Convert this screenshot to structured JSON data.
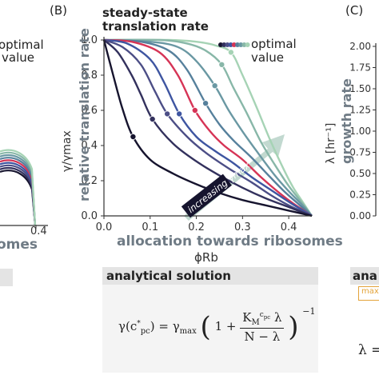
{
  "panel_labels": {
    "b": "(B)",
    "c": "(C)"
  },
  "left_panel": {
    "legend_line1": "optimal",
    "legend_line2": "value",
    "tick_04": "0.4",
    "xlabel_fragment": "omes"
  },
  "chart_data": {
    "type": "line",
    "title_line1": "steady-state",
    "title_line2": "translation rate",
    "xlabel": "allocation towards ribosomes",
    "xlabel_symbol": "ϕRb",
    "ylabel_ratio": "γ/γmax",
    "ylabel": "relative translation rate",
    "xlim": [
      0.0,
      0.45
    ],
    "ylim": [
      0.0,
      1.0
    ],
    "xticks": [
      "0.0",
      "0.1",
      "0.2",
      "0.3",
      "0.4"
    ],
    "yticks": [
      "0.0",
      "0.2",
      "0.4",
      "0.6",
      "0.8",
      "1.0"
    ],
    "grid": false,
    "legend_line1": "optimal",
    "legend_line2": "value",
    "annotation": "increasing γmax",
    "series": [
      {
        "color": "#16142e",
        "optimal_x": 0.063,
        "optimal_y": 0.45,
        "x": [
          0.0,
          0.02,
          0.04,
          0.063,
          0.1,
          0.15,
          0.2,
          0.25,
          0.3,
          0.35,
          0.4,
          0.45
        ],
        "y": [
          1.0,
          0.8,
          0.61,
          0.45,
          0.32,
          0.24,
          0.18,
          0.13,
          0.09,
          0.06,
          0.03,
          0.0
        ]
      },
      {
        "color": "#33315d",
        "optimal_x": 0.105,
        "optimal_y": 0.55,
        "x": [
          0.0,
          0.03,
          0.06,
          0.08,
          0.105,
          0.15,
          0.2,
          0.25,
          0.3,
          0.35,
          0.4,
          0.45
        ],
        "y": [
          1.0,
          0.93,
          0.8,
          0.69,
          0.55,
          0.41,
          0.31,
          0.23,
          0.16,
          0.1,
          0.05,
          0.0
        ]
      },
      {
        "color": "#4c4e86",
        "optimal_x": 0.137,
        "optimal_y": 0.58,
        "x": [
          0.0,
          0.04,
          0.08,
          0.11,
          0.137,
          0.18,
          0.22,
          0.27,
          0.32,
          0.36,
          0.4,
          0.45
        ],
        "y": [
          1.0,
          0.96,
          0.86,
          0.71,
          0.58,
          0.45,
          0.36,
          0.27,
          0.19,
          0.12,
          0.06,
          0.0
        ]
      },
      {
        "color": "#3e55a1",
        "optimal_x": 0.163,
        "optimal_y": 0.58,
        "x": [
          0.0,
          0.05,
          0.1,
          0.13,
          0.163,
          0.2,
          0.24,
          0.28,
          0.32,
          0.36,
          0.4,
          0.45
        ],
        "y": [
          1.0,
          0.98,
          0.89,
          0.76,
          0.58,
          0.45,
          0.37,
          0.3,
          0.22,
          0.15,
          0.08,
          0.0
        ]
      },
      {
        "color": "#d63456",
        "optimal_x": 0.197,
        "optimal_y": 0.6,
        "x": [
          0.0,
          0.06,
          0.12,
          0.16,
          0.197,
          0.23,
          0.26,
          0.3,
          0.34,
          0.38,
          0.41,
          0.45
        ],
        "y": [
          1.0,
          0.99,
          0.93,
          0.8,
          0.6,
          0.48,
          0.4,
          0.32,
          0.22,
          0.13,
          0.07,
          0.0
        ]
      },
      {
        "color": "#56809c",
        "optimal_x": 0.22,
        "optimal_y": 0.64,
        "x": [
          0.0,
          0.08,
          0.14,
          0.18,
          0.22,
          0.25,
          0.28,
          0.32,
          0.36,
          0.39,
          0.42,
          0.45
        ],
        "y": [
          1.0,
          0.99,
          0.94,
          0.83,
          0.64,
          0.52,
          0.43,
          0.33,
          0.22,
          0.14,
          0.07,
          0.0
        ]
      },
      {
        "color": "#6a98a3",
        "optimal_x": 0.24,
        "optimal_y": 0.74,
        "x": [
          0.0,
          0.1,
          0.16,
          0.2,
          0.24,
          0.27,
          0.3,
          0.33,
          0.37,
          0.4,
          0.43,
          0.45
        ],
        "y": [
          1.0,
          0.99,
          0.96,
          0.88,
          0.74,
          0.6,
          0.48,
          0.37,
          0.23,
          0.14,
          0.06,
          0.0
        ]
      },
      {
        "color": "#88b7a8",
        "optimal_x": 0.255,
        "optimal_y": 0.86,
        "x": [
          0.0,
          0.12,
          0.18,
          0.22,
          0.255,
          0.28,
          0.31,
          0.34,
          0.37,
          0.4,
          0.43,
          0.45
        ],
        "y": [
          1.0,
          1.0,
          0.98,
          0.94,
          0.86,
          0.73,
          0.58,
          0.42,
          0.29,
          0.17,
          0.07,
          0.0
        ]
      },
      {
        "color": "#a6d3b5",
        "optimal_x": 0.275,
        "optimal_y": 0.93,
        "x": [
          0.0,
          0.14,
          0.2,
          0.24,
          0.275,
          0.3,
          0.33,
          0.36,
          0.39,
          0.41,
          0.43,
          0.45
        ],
        "y": [
          1.0,
          1.0,
          0.99,
          0.97,
          0.93,
          0.8,
          0.62,
          0.43,
          0.26,
          0.16,
          0.08,
          0.0
        ]
      }
    ]
  },
  "analytical": {
    "title": "analytical solution",
    "lhs": "γ(c*pc) = γmax",
    "one_plus": "1 +",
    "numerator": "KMcpc λ",
    "denominator": "N − λ",
    "exponent": "−1"
  },
  "right_panel": {
    "ylabel_unit": "λ [hr⁻¹]",
    "ylabel": "growth rate",
    "yticks": [
      "0.00",
      "0.25",
      "0.50",
      "0.75",
      "1.00",
      "1.25",
      "1.50",
      "1.75",
      "2.00"
    ],
    "title_fragment": "ana",
    "inset_fragment": "max",
    "formula_fragment": "λ ="
  },
  "colors": {
    "axis": "#333333",
    "xlabel_gray": "#6f7b85",
    "ylabel_gray": "#6f7b85",
    "band_gray": "#e4e4e4",
    "inset_orange": "#e3a33a"
  }
}
